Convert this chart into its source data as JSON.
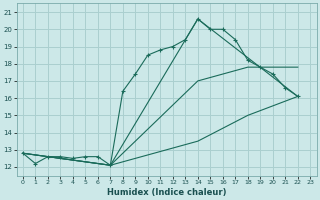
{
  "title": "",
  "xlabel": "Humidex (Indice chaleur)",
  "ylabel": "",
  "bg_color": "#cce8e8",
  "grid_color": "#aacfcf",
  "line_color": "#1a6b5a",
  "xlim": [
    -0.5,
    23.5
  ],
  "ylim": [
    11.5,
    21.5
  ],
  "xticks": [
    0,
    1,
    2,
    3,
    4,
    5,
    6,
    7,
    8,
    9,
    10,
    11,
    12,
    13,
    14,
    15,
    16,
    17,
    18,
    19,
    20,
    21,
    22,
    23
  ],
  "yticks": [
    12,
    13,
    14,
    15,
    16,
    17,
    18,
    19,
    20,
    21
  ],
  "series1": [
    [
      0,
      12.8
    ],
    [
      1,
      12.2
    ],
    [
      2,
      12.6
    ],
    [
      3,
      12.6
    ],
    [
      4,
      12.5
    ],
    [
      5,
      12.6
    ],
    [
      6,
      12.6
    ],
    [
      7,
      12.1
    ],
    [
      8,
      16.4
    ],
    [
      9,
      17.4
    ],
    [
      10,
      18.5
    ],
    [
      11,
      18.8
    ],
    [
      12,
      19.0
    ],
    [
      13,
      19.4
    ],
    [
      14,
      20.6
    ],
    [
      15,
      20.0
    ],
    [
      16,
      20.0
    ],
    [
      17,
      19.4
    ],
    [
      18,
      18.2
    ],
    [
      19,
      17.8
    ],
    [
      20,
      17.4
    ],
    [
      21,
      16.6
    ],
    [
      22,
      16.1
    ]
  ],
  "series2": [
    [
      0,
      12.8
    ],
    [
      7,
      12.1
    ],
    [
      14,
      20.6
    ],
    [
      22,
      16.1
    ]
  ],
  "series3": [
    [
      0,
      12.8
    ],
    [
      7,
      12.1
    ],
    [
      14,
      17.0
    ],
    [
      18,
      17.8
    ],
    [
      22,
      17.8
    ]
  ],
  "series4": [
    [
      0,
      12.8
    ],
    [
      7,
      12.1
    ],
    [
      14,
      13.5
    ],
    [
      18,
      15.0
    ],
    [
      22,
      16.1
    ]
  ]
}
